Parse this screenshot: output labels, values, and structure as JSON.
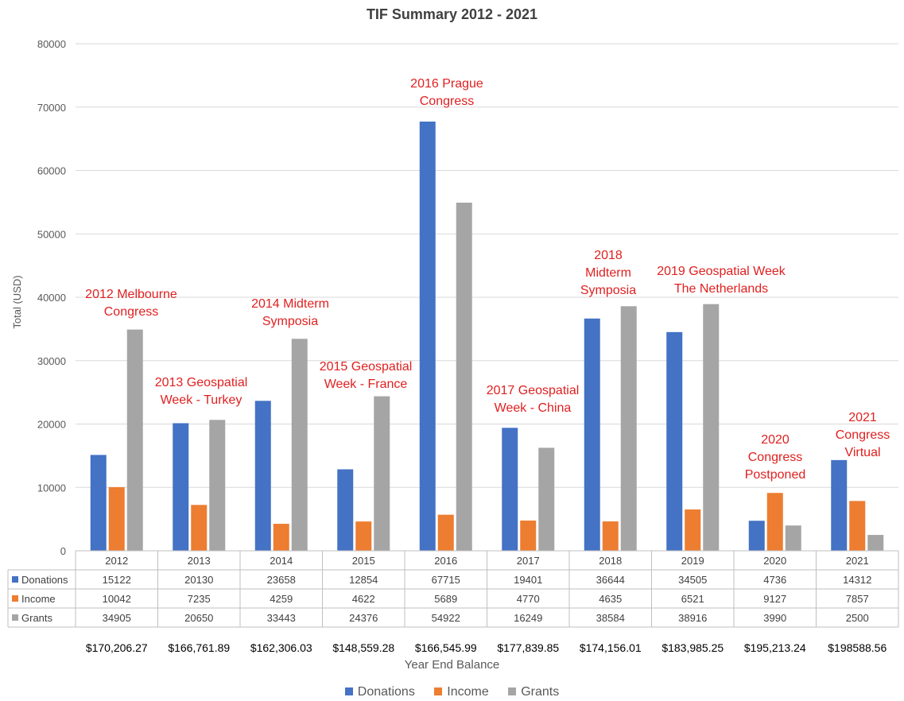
{
  "chart_data": {
    "type": "bar",
    "title": "TIF Summary 2012 - 2021",
    "ylabel": "Total (USD)",
    "xlabel": "Year End Balance",
    "ylim": [
      0,
      80000
    ],
    "yticks": [
      0,
      10000,
      20000,
      30000,
      40000,
      50000,
      60000,
      70000,
      80000
    ],
    "grid": true,
    "legend_position": "bottom",
    "categories": [
      "2012",
      "2013",
      "2014",
      "2015",
      "2016",
      "2017",
      "2018",
      "2019",
      "2020",
      "2021"
    ],
    "series": [
      {
        "name": "Donations",
        "color": "#4472c4",
        "values": [
          15122,
          20130,
          23658,
          12854,
          67715,
          19401,
          36644,
          34505,
          4736,
          14312
        ]
      },
      {
        "name": "Income",
        "color": "#ed7d31",
        "values": [
          10042,
          7235,
          4259,
          4622,
          5689,
          4770,
          4635,
          6521,
          9127,
          7857
        ]
      },
      {
        "name": "Grants",
        "color": "#a5a5a5",
        "values": [
          34905,
          20650,
          33443,
          24376,
          54922,
          16249,
          38584,
          38916,
          3990,
          2500
        ]
      }
    ],
    "year_end_balances": [
      "$170,206.27",
      "$166,761.89",
      "$162,306.03",
      "$148,559.28",
      "$166,545.99",
      "$177,839.85",
      "$174,156.01",
      "$183,985.25",
      "$195,213.24",
      "$198588.56"
    ],
    "annotations": [
      {
        "category": "2012",
        "lines": [
          "2012 Melbourne",
          "Congress"
        ],
        "color": "#e02020"
      },
      {
        "category": "2013",
        "lines": [
          "2013 Geospatial",
          "Week - Turkey"
        ],
        "color": "#e02020"
      },
      {
        "category": "2014",
        "lines": [
          "2014 Midterm",
          "Symposia"
        ],
        "color": "#e02020"
      },
      {
        "category": "2015",
        "lines": [
          "2015 Geospatial",
          "Week - France"
        ],
        "color": "#e02020"
      },
      {
        "category": "2016",
        "lines": [
          "2016 Prague",
          "Congress"
        ],
        "color": "#e02020"
      },
      {
        "category": "2017",
        "lines": [
          "2017 Geospatial",
          "Week - China"
        ],
        "color": "#e02020"
      },
      {
        "category": "2018",
        "lines": [
          "2018",
          "Midterm",
          "Symposia"
        ],
        "color": "#e02020"
      },
      {
        "category": "2019",
        "lines": [
          "2019 Geospatial Week",
          "The Netherlands"
        ],
        "color": "#e02020"
      },
      {
        "category": "2020",
        "lines": [
          "2020",
          "Congress",
          "Postponed"
        ],
        "color": "#e02020"
      },
      {
        "category": "2021",
        "lines": [
          "2021",
          "Congress",
          "Virtual"
        ],
        "color": "#e02020"
      }
    ]
  }
}
